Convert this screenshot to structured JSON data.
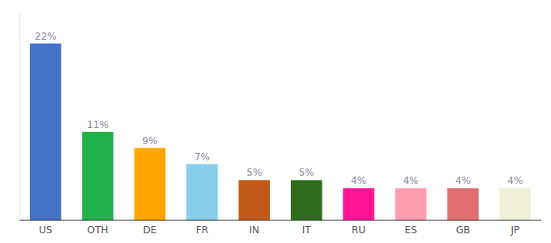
{
  "chart_data": {
    "type": "bar",
    "categories": [
      "US",
      "OTH",
      "DE",
      "FR",
      "IN",
      "IT",
      "RU",
      "ES",
      "GB",
      "JP"
    ],
    "values": [
      22,
      11,
      9,
      7,
      5,
      5,
      4,
      4,
      4,
      4
    ],
    "value_labels": [
      "22%",
      "11%",
      "9%",
      "7%",
      "5%",
      "5%",
      "4%",
      "4%",
      "4%",
      "4%"
    ],
    "colors": [
      "#4472c4",
      "#22b14c",
      "#ffa500",
      "#87ceeb",
      "#c05a1a",
      "#2e6b1e",
      "#ff1493",
      "#ff9db0",
      "#e07070",
      "#f0f0d8"
    ],
    "ylim": [
      0,
      26
    ],
    "data_labels": true,
    "tick_labels": "x",
    "grid": false
  }
}
